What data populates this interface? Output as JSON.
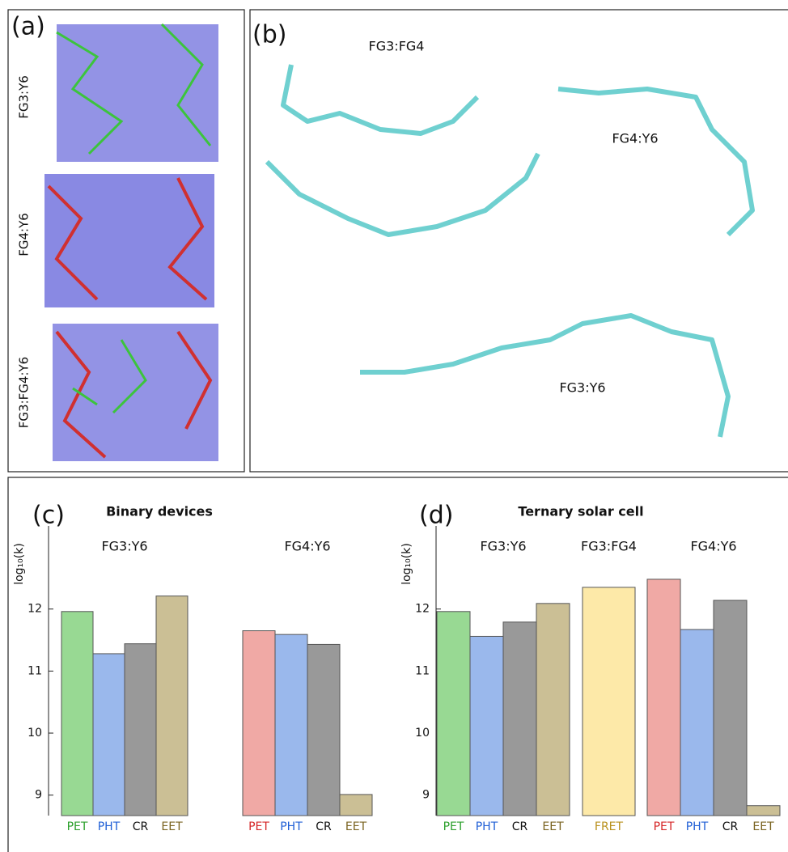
{
  "panel_a": {
    "label": "(a)",
    "systems": [
      "FG3:Y6",
      "FG4:Y6",
      "FG3:FG4:Y6"
    ]
  },
  "panel_b": {
    "label": "(b)",
    "pairs": [
      "FG3:FG4",
      "FG4:Y6",
      "FG3:Y6"
    ]
  },
  "chart_data": [
    {
      "type": "bar",
      "panel": "(c)",
      "title": "Binary devices",
      "ylabel": "log₁₀(k)",
      "ylim": [
        8.67,
        13.34
      ],
      "yticks": [
        9,
        10,
        11,
        12
      ],
      "groups": [
        {
          "label": "FG3:Y6",
          "categories": [
            "PET",
            "PHT",
            "CR",
            "EET"
          ],
          "values": [
            11.96,
            11.28,
            11.44,
            12.21
          ],
          "colors": [
            "#98d993",
            "#9ab8ec",
            "#999999",
            "#cbbf95"
          ],
          "label_colors": [
            "#2ca02c",
            "#1f5fd6",
            "#111111",
            "#7a6320"
          ]
        },
        {
          "label": "FG4:Y6",
          "categories": [
            "PET",
            "PHT",
            "CR",
            "EET"
          ],
          "values": [
            11.65,
            11.59,
            11.43,
            9.01
          ],
          "colors": [
            "#f0a9a5",
            "#9ab8ec",
            "#999999",
            "#cbbf95"
          ],
          "label_colors": [
            "#d62728",
            "#1f5fd6",
            "#111111",
            "#7a6320"
          ]
        }
      ]
    },
    {
      "type": "bar",
      "panel": "(d)",
      "title": "Ternary solar cell",
      "ylabel": "log₁₀(k)",
      "ylim": [
        8.67,
        13.34
      ],
      "yticks": [
        9,
        10,
        11,
        12
      ],
      "groups": [
        {
          "label": "FG3:Y6",
          "categories": [
            "PET",
            "PHT",
            "CR",
            "EET"
          ],
          "values": [
            11.96,
            11.56,
            11.79,
            12.09
          ],
          "colors": [
            "#98d993",
            "#9ab8ec",
            "#999999",
            "#cbbf95"
          ],
          "label_colors": [
            "#2ca02c",
            "#1f5fd6",
            "#111111",
            "#7a6320"
          ]
        },
        {
          "label": "FG3:FG4",
          "categories": [
            "FRET"
          ],
          "values": [
            12.35
          ],
          "colors": [
            "#fde9a8"
          ],
          "label_colors": [
            "#b8901c"
          ]
        },
        {
          "label": "FG4:Y6",
          "categories": [
            "PET",
            "PHT",
            "CR",
            "EET"
          ],
          "values": [
            12.48,
            11.67,
            12.14,
            8.83
          ],
          "colors": [
            "#f0a9a5",
            "#9ab8ec",
            "#999999",
            "#cbbf95"
          ],
          "label_colors": [
            "#d62728",
            "#1f5fd6",
            "#111111",
            "#7a6320"
          ]
        }
      ]
    }
  ]
}
